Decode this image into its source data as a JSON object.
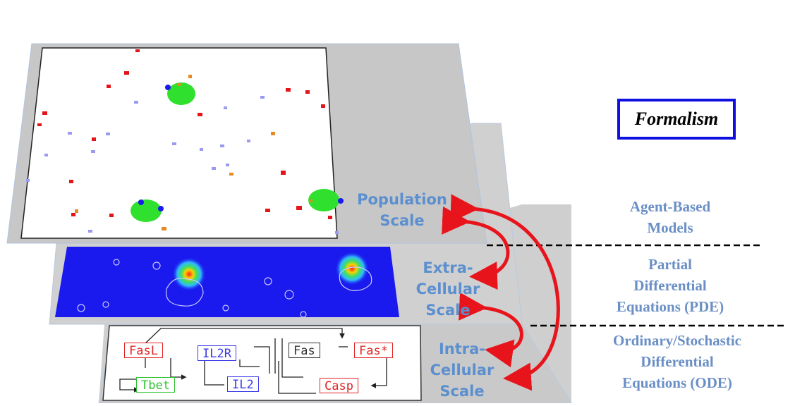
{
  "formalism": {
    "title": "Formalism"
  },
  "scales": {
    "population": [
      "Population",
      "Scale"
    ],
    "extracellular": [
      "Extra-",
      "Cellular",
      "Scale"
    ],
    "intracellular": [
      "Intra-",
      "Cellular",
      "Scale"
    ]
  },
  "formalisms": {
    "agent_based": [
      "Agent-Based",
      "Models"
    ],
    "pde": [
      "Partial",
      "Differential",
      "Equations (PDE)"
    ],
    "ode": [
      "Ordinary/Stochastic",
      "Differential",
      "Equations (ODE)"
    ]
  },
  "network_nodes": {
    "fasl": "FasL",
    "il2r": "IL2R",
    "fas": "Fas",
    "fas_star": "Fas*",
    "tbet": "Tbet",
    "il2": "IL2",
    "casp": "Casp"
  },
  "colors": {
    "label_blue": "#5b8fcf",
    "formalism_box": "#1010e0",
    "arrow_red": "#e8141b",
    "field_blue": "#1a1aee",
    "cell_red": "#e3151b",
    "cell_lavender": "#9a9af0",
    "cell_green": "#2fe02f",
    "cell_orange": "#e88a22"
  }
}
